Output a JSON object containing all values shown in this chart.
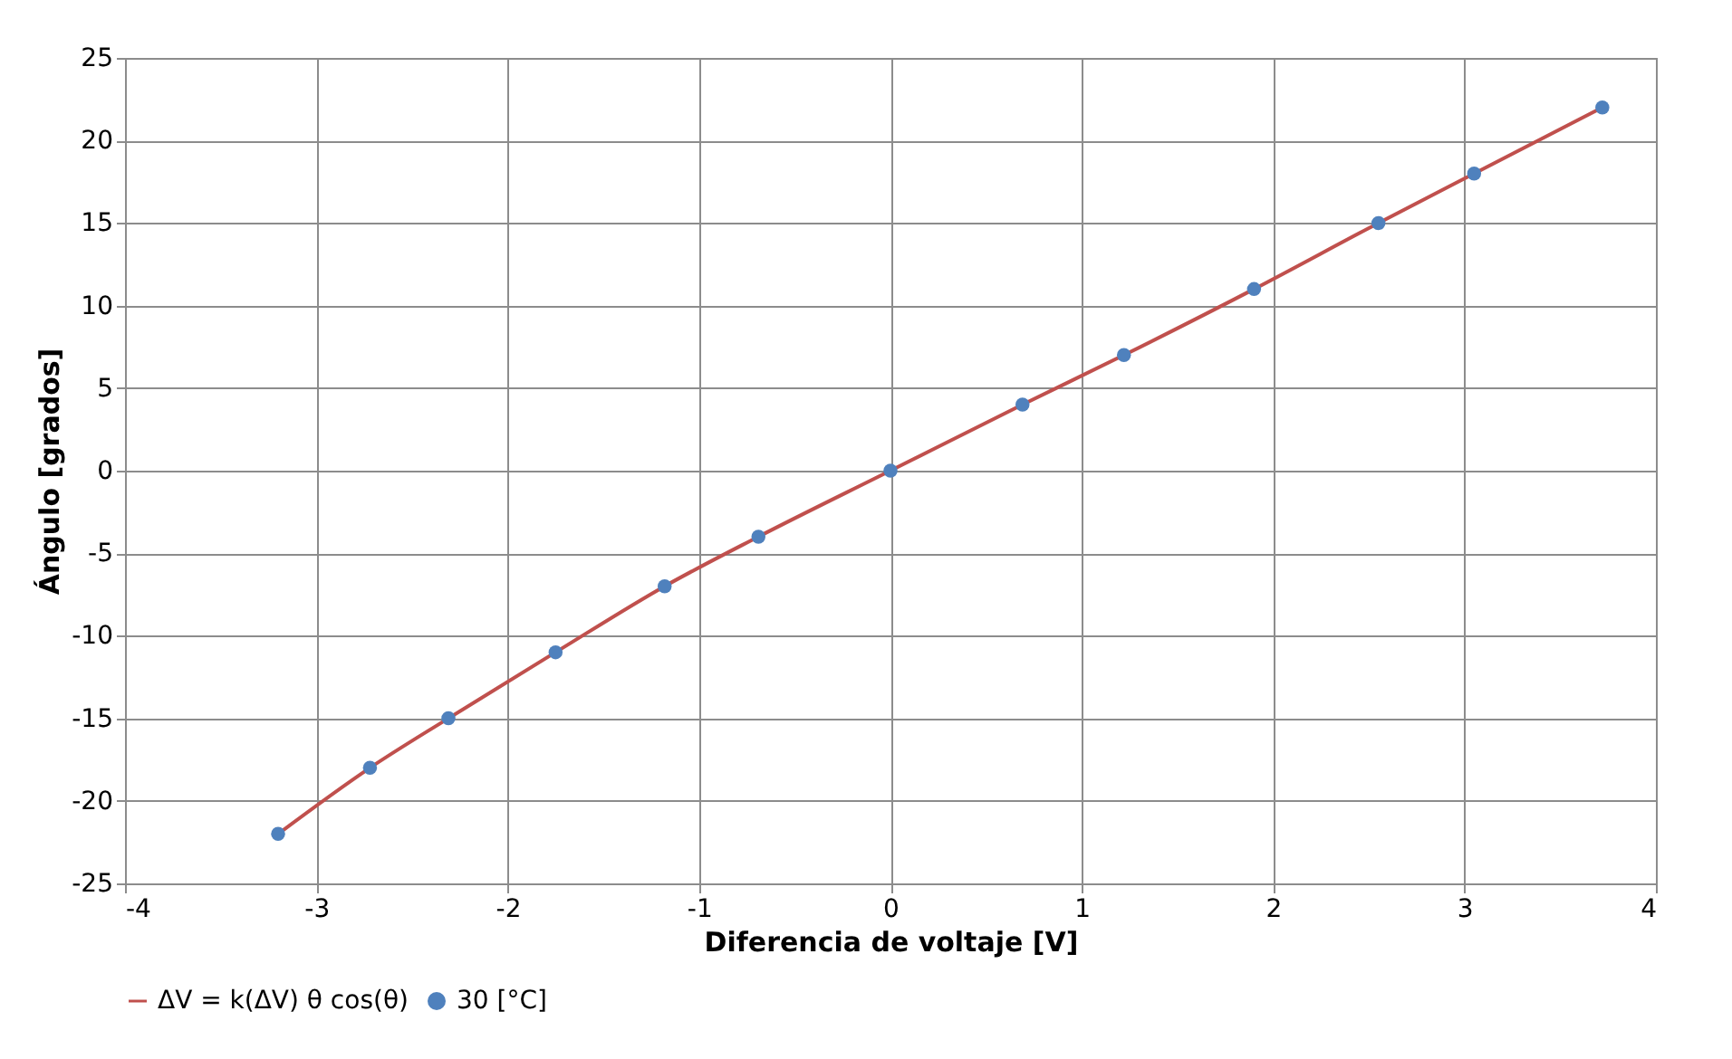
{
  "chart_data": {
    "type": "line",
    "xlabel": "Diferencia de voltaje [V]",
    "ylabel": "Ángulo [grados]",
    "series": [
      {
        "name": "ΔV = k(ΔV) θ cos(θ)",
        "color": "#c0504d",
        "line_style": "solid",
        "marker": "none",
        "x": [
          -3.2,
          -2.72,
          -2.31,
          -1.75,
          -1.18,
          -0.69,
          0,
          0.69,
          1.22,
          1.9,
          2.55,
          3.05,
          3.72
        ],
        "values": [
          -22,
          -18,
          -15,
          -11,
          -7,
          -4,
          0,
          4,
          7,
          11,
          15,
          18,
          22
        ]
      },
      {
        "name": "30 [°C]",
        "type": "scatter",
        "color": "#4f81bd",
        "marker": "circle",
        "x": [
          -3.2,
          -2.72,
          -2.31,
          -1.75,
          -1.18,
          -0.69,
          0,
          0.69,
          1.22,
          1.9,
          2.55,
          3.05,
          3.72
        ],
        "values": [
          -22,
          -18,
          -15,
          -11,
          -7,
          -4,
          0,
          4,
          7,
          11,
          15,
          18,
          22
        ]
      }
    ],
    "xlim": [
      -4,
      4
    ],
    "xticks": [
      -4,
      -3,
      -2,
      -1,
      0,
      1,
      2,
      3,
      4
    ],
    "ylim": [
      -25,
      25
    ],
    "yticks": [
      -25,
      -20,
      -15,
      -10,
      -5,
      0,
      5,
      10,
      15,
      20,
      25
    ],
    "grid": true,
    "legend": "bottom"
  }
}
